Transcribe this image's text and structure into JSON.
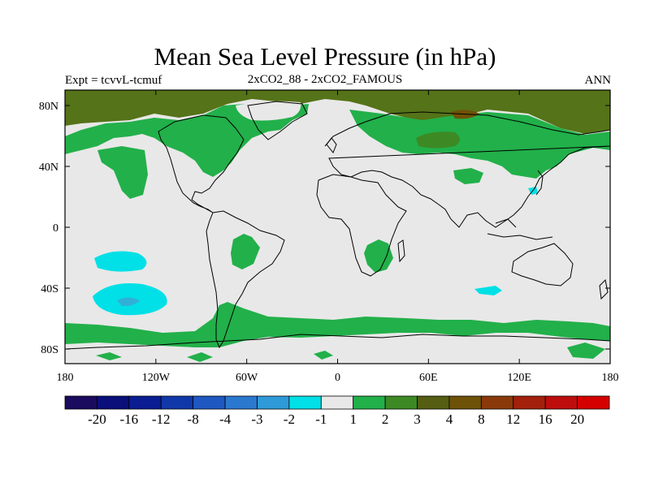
{
  "title": "Mean Sea Level Pressure (in hPa)",
  "subtitle_left": "Expt = tcvvL-tcmuf",
  "subtitle_center": "2xCO2_88 - 2xCO2_FAMOUS",
  "subtitle_right": "ANN",
  "lat_ticks": [
    "80N",
    "40N",
    "0",
    "40S",
    "80S"
  ],
  "lon_ticks": [
    "180",
    "120W",
    "60W",
    "0",
    "60E",
    "120E",
    "180"
  ],
  "colorbar": {
    "colors": [
      "#1a0b5e",
      "#0a0f7a",
      "#0a1d91",
      "#1138a8",
      "#1f58c0",
      "#2b78cf",
      "#2f9ad8",
      "#00e0e6",
      "#e8e8e8",
      "#22b04a",
      "#3d8a25",
      "#555e12",
      "#6e5208",
      "#8a3a0a",
      "#a3210c",
      "#be0d0d",
      "#d40000"
    ],
    "labels": [
      "-20",
      "-16",
      "-12",
      "-8",
      "-4",
      "-3",
      "-2",
      "-1",
      "1",
      "2",
      "3",
      "4",
      "8",
      "12",
      "16",
      "20"
    ]
  },
  "colors": {
    "background_field": "#e8e8e8",
    "light_green": "#22b04a",
    "dark_green": "#4a7a1e",
    "brown_green": "#557318",
    "cyan": "#00e0e6",
    "light_cyan": "#30d2e2"
  }
}
